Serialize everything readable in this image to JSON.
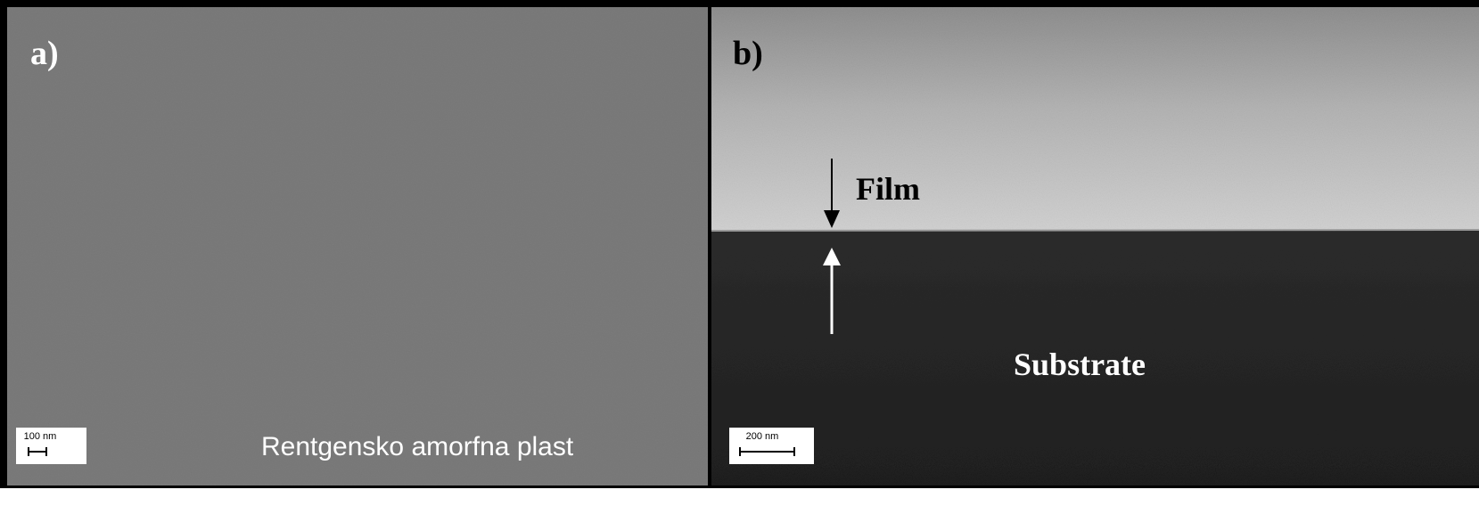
{
  "panels": [
    {
      "label": "a)",
      "scale_bar": "100 nm",
      "caption": "Rentgensko amorfna plast"
    },
    {
      "label": "b)",
      "scale_bar": "200 nm",
      "annotations": [
        "Film",
        "Substrate"
      ]
    }
  ]
}
